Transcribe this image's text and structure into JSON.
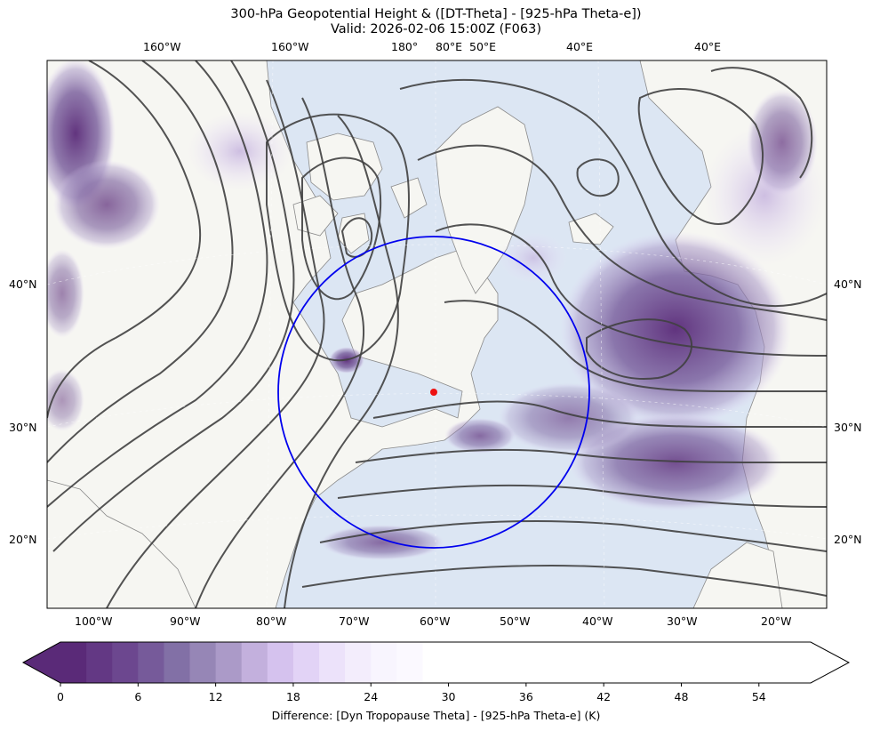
{
  "title_line1": "300-hPa Geopotential Height & ([DT-Theta] - [925-hPa Theta-e])",
  "title_line2": "Valid: 2026-02-06 15:00Z (F063)",
  "top_lon_labels": [
    "160°W",
    "160°W",
    "180°",
    "80°E",
    "50°E",
    "40°E",
    "40°E"
  ],
  "bottom_lon_labels": [
    "100°W",
    "90°W",
    "80°W",
    "70°W",
    "60°W",
    "50°W",
    "40°W",
    "30°W",
    "20°W"
  ],
  "left_lat_labels": [
    "40°N",
    "30°N",
    "20°N"
  ],
  "right_lat_labels": [
    "40°N",
    "30°N",
    "20°N"
  ],
  "colorbar": {
    "ticks": [
      "0",
      "6",
      "12",
      "18",
      "24",
      "30",
      "36",
      "42",
      "48",
      "54"
    ],
    "label": "Difference: [Dyn Tropopause Theta] - [925-hPa Theta-e] (K)",
    "colors": [
      "#5a2a78",
      "#633884",
      "#6c478f",
      "#765a9a",
      "#8270a6",
      "#9686b6",
      "#ab9ac8",
      "#c3b0dd",
      "#d5c2ee",
      "#e2d3f6",
      "#ece2fa",
      "#f3edfc",
      "#f8f5fe",
      "#fbf9ff",
      "#ffffff"
    ]
  },
  "map": {
    "ocean_color": "#dce6f3",
    "land_color": "#f6f6f2",
    "contour_color": "#404040",
    "circle_color": "#0000ee",
    "point_color": "#ee1111"
  }
}
